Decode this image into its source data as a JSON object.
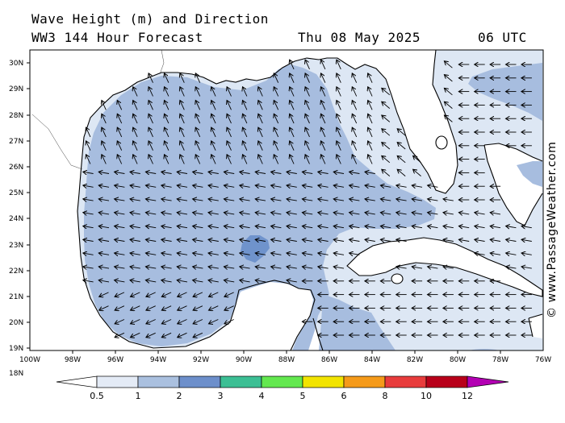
{
  "header": {
    "title": "Wave Height (m) and Direction",
    "model": "WW3 144 Hour Forecast",
    "date": "Thu 08 May 2025",
    "time": "06 UTC"
  },
  "credit": "© www.PassageWeather.com",
  "map": {
    "lat_labels": [
      "30N",
      "29N",
      "28N",
      "27N",
      "26N",
      "25N",
      "24N",
      "23N",
      "22N",
      "21N",
      "20N",
      "19N",
      "18N"
    ],
    "lon_labels": [
      "100W",
      "98W",
      "96W",
      "94W",
      "92W",
      "90W",
      "88W",
      "86W",
      "84W",
      "82W",
      "80W",
      "78W",
      "76W"
    ],
    "wave_direction": "arrows pointing toward west / north-west across the Gulf of Mexico"
  },
  "legend": {
    "labels": [
      "0.5",
      "1",
      "2",
      "3",
      "4",
      "5",
      "6",
      "8",
      "10",
      "12"
    ],
    "colors": [
      "#ffffff",
      "#e4ebf6",
      "#aac0df",
      "#6d8fcb",
      "#3cbf94",
      "#63e84f",
      "#f2e400",
      "#f59a1a",
      "#e83c3c",
      "#b8001a",
      "#b300b3"
    ]
  },
  "colors": {
    "sea_light": "#dde7f4",
    "sea_mid": "#a7bddf",
    "sea_peak": "#6f93cc",
    "land": "#ffffff",
    "coast": "#000000"
  }
}
